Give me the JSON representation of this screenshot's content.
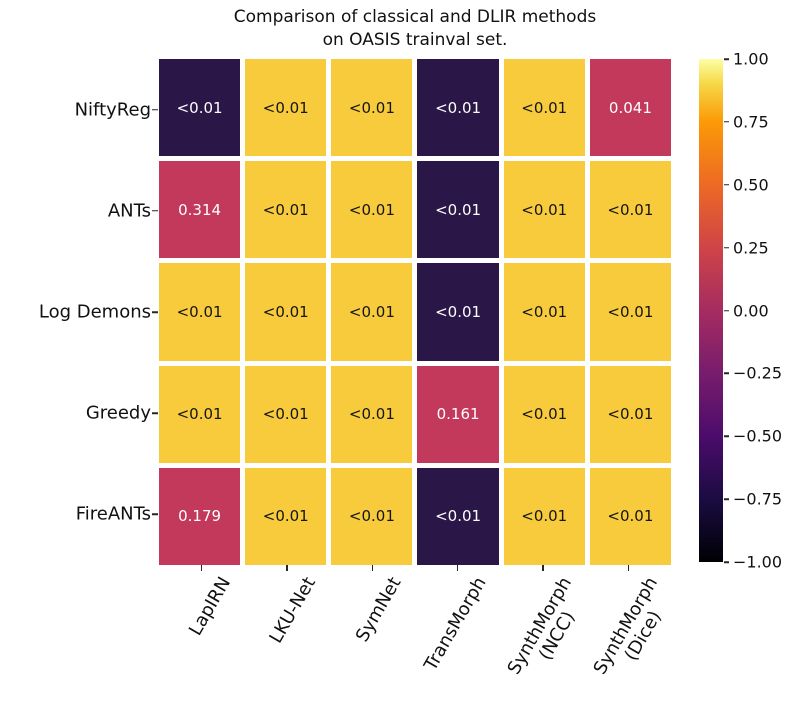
{
  "title": {
    "line1": "Comparison of classical and DLIR methods",
    "line2": "on OASIS trainval set."
  },
  "colors": {
    "background": "#ffffff",
    "cell_yellow": "#f8cb3c",
    "cell_dark": "#2a1747",
    "cell_crimson": "#c2395c",
    "text_on_light": "#151515",
    "text_on_dark": "#ffffff",
    "axis_text": "#111111",
    "tick": "#262626"
  },
  "chart_data": {
    "type": "heatmap",
    "title": "Comparison of classical and DLIR methods on OASIS trainval set.",
    "rows": [
      "NiftyReg",
      "ANTs",
      "Log Demons",
      "Greedy",
      "FireANTs"
    ],
    "columns": [
      "LapIRN",
      "LKU-Net",
      "SymNet",
      "TransMorph",
      "SynthMorph\n(NCC)",
      "SynthMorph\n(Dice)"
    ],
    "values": [
      [
        "<0.01",
        "<0.01",
        "<0.01",
        "<0.01",
        "<0.01",
        "0.041"
      ],
      [
        "0.314",
        "<0.01",
        "<0.01",
        "<0.01",
        "<0.01",
        "<0.01"
      ],
      [
        "<0.01",
        "<0.01",
        "<0.01",
        "<0.01",
        "<0.01",
        "<0.01"
      ],
      [
        "<0.01",
        "<0.01",
        "<0.01",
        "0.161",
        "<0.01",
        "<0.01"
      ],
      [
        "0.179",
        "<0.01",
        "<0.01",
        "<0.01",
        "<0.01",
        "<0.01"
      ]
    ],
    "cell_colors": [
      [
        "cell_dark",
        "cell_yellow",
        "cell_yellow",
        "cell_dark",
        "cell_yellow",
        "cell_crimson"
      ],
      [
        "cell_crimson",
        "cell_yellow",
        "cell_yellow",
        "cell_dark",
        "cell_yellow",
        "cell_yellow"
      ],
      [
        "cell_yellow",
        "cell_yellow",
        "cell_yellow",
        "cell_dark",
        "cell_yellow",
        "cell_yellow"
      ],
      [
        "cell_yellow",
        "cell_yellow",
        "cell_yellow",
        "cell_crimson",
        "cell_yellow",
        "cell_yellow"
      ],
      [
        "cell_crimson",
        "cell_yellow",
        "cell_yellow",
        "cell_dark",
        "cell_yellow",
        "cell_yellow"
      ]
    ],
    "colorbar": {
      "colormap": "inferno",
      "vmin": -1.0,
      "vmax": 1.0,
      "ticks": [
        "1.00",
        "0.75",
        "0.50",
        "0.25",
        "0.00",
        "−0.25",
        "−0.50",
        "−0.75",
        "−1.00"
      ]
    },
    "legend": "none",
    "grid_lines": "white cell separators"
  }
}
